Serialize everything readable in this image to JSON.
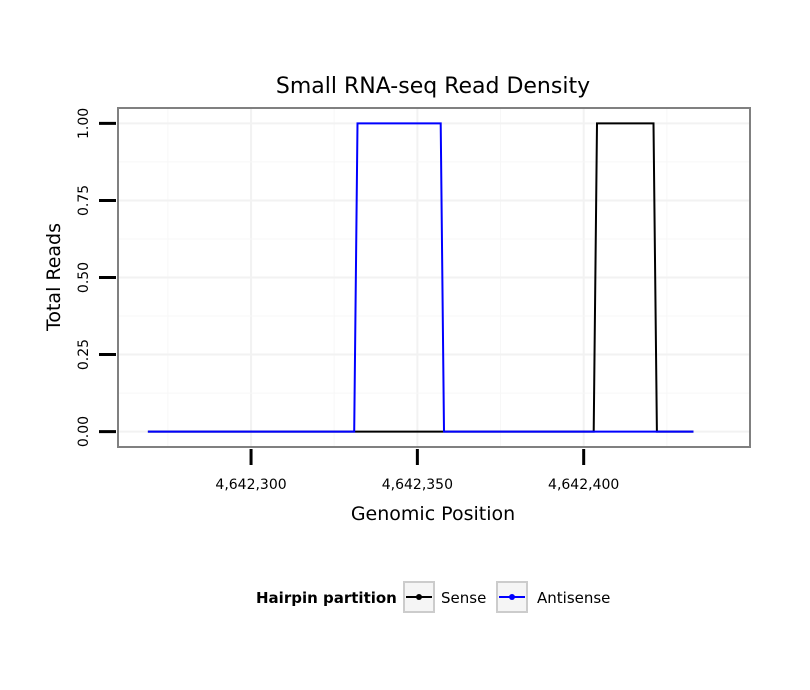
{
  "chart_data": {
    "type": "line",
    "title": "Small RNA-seq Read Density",
    "xlabel": "Genomic Position",
    "ylabel": "Total Reads",
    "xlim": [
      4642260,
      4642450
    ],
    "ylim": [
      -0.05,
      1.05
    ],
    "x_ticks": [
      4642300,
      4642350,
      4642400
    ],
    "x_tick_labels": [
      "4,642,300",
      "4,642,350",
      "4,642,400"
    ],
    "y_ticks": [
      0,
      0.25,
      0.5,
      0.75,
      1.0
    ],
    "y_tick_labels": [
      "0.00",
      "0.25",
      "0.50",
      "0.75",
      "1.00"
    ],
    "grid": true,
    "legend": {
      "title": "Hairpin partition",
      "position": "bottom",
      "entries": [
        {
          "name": "Sense",
          "color": "#000000"
        },
        {
          "name": "Antisense",
          "color": "#0000ff"
        }
      ]
    },
    "series": [
      {
        "name": "Sense",
        "color": "#000000",
        "x": [
          4642269,
          4642403,
          4642404,
          4642421,
          4642422,
          4642433
        ],
        "y": [
          0,
          0,
          1,
          1,
          0,
          0
        ]
      },
      {
        "name": "Antisense",
        "color": "#0000ff",
        "x": [
          4642269,
          4642331,
          4642332,
          4642357,
          4642358,
          4642403,
          4642404,
          4642421,
          4642422,
          4642433
        ],
        "y": [
          0,
          0,
          1,
          1,
          0,
          0,
          0,
          0,
          0,
          0
        ]
      }
    ]
  }
}
